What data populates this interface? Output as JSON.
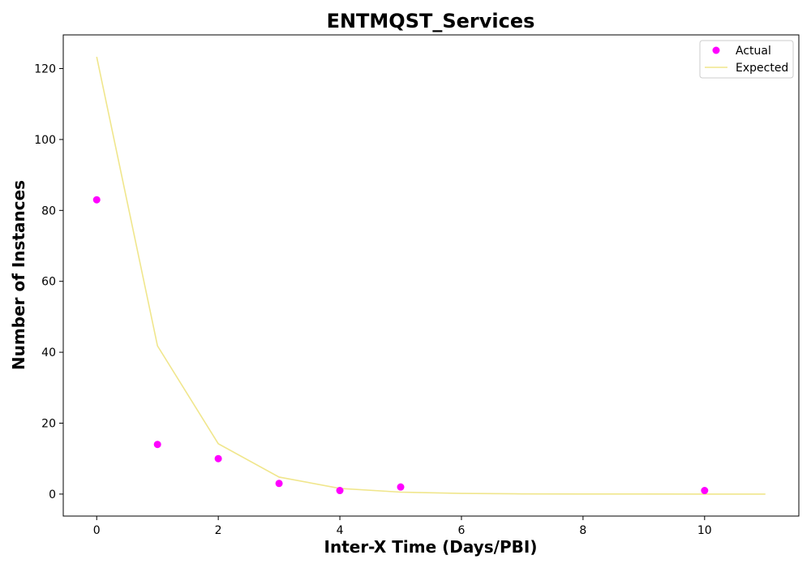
{
  "chart_data": {
    "type": "scatter",
    "title": "ENTMQST_Services",
    "xlabel": "Inter-X Time (Days/PBI)",
    "ylabel": "Number of Instances",
    "xlim": [
      -0.55,
      11.55
    ],
    "ylim": [
      -6.2,
      129.5
    ],
    "xticks": [
      0,
      2,
      4,
      6,
      8,
      10
    ],
    "yticks": [
      0,
      20,
      40,
      60,
      80,
      100,
      120
    ],
    "grid": false,
    "legend_position": "top-right",
    "series": [
      {
        "name": "Actual",
        "kind": "scatter",
        "color": "#ff00ff",
        "x": [
          0,
          1,
          2,
          3,
          4,
          5,
          10
        ],
        "y": [
          83,
          14,
          10,
          3,
          1,
          2,
          1
        ]
      },
      {
        "name": "Expected",
        "kind": "line",
        "color": "#f0e68c",
        "x": [
          0,
          1,
          2,
          3,
          4,
          5,
          6,
          7,
          8,
          9,
          10,
          11
        ],
        "y": [
          123.3,
          41.8,
          14.2,
          4.8,
          1.6,
          0.55,
          0.19,
          0.06,
          0.02,
          0.01,
          0.0,
          0.0
        ]
      }
    ]
  }
}
